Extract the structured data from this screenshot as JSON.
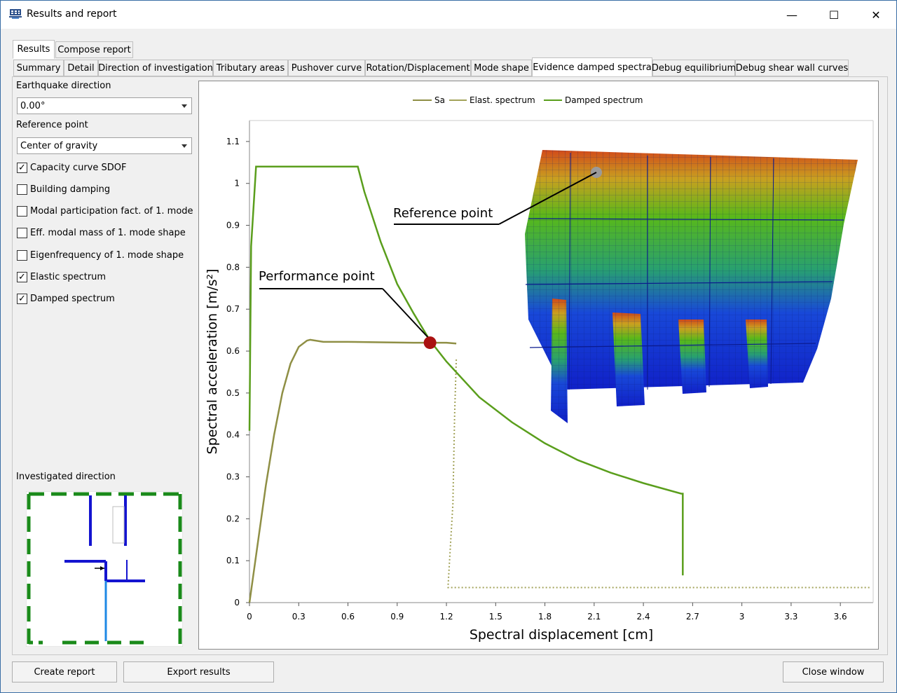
{
  "window": {
    "title": "Results and report",
    "minimize_label": "—",
    "maximize_label": "☐",
    "close_label": "✕"
  },
  "top_tabs": [
    {
      "label": "Results",
      "selected": true
    },
    {
      "label": "Compose report",
      "selected": false
    }
  ],
  "result_tabs": [
    {
      "label": "Summary"
    },
    {
      "label": "Detail"
    },
    {
      "label": "Direction of investigation"
    },
    {
      "label": "Tributary areas"
    },
    {
      "label": "Pushover curve"
    },
    {
      "label": "Rotation/Displacement"
    },
    {
      "label": "Mode shape"
    },
    {
      "label": "Evidence damped spectra",
      "selected": true
    },
    {
      "label": "Debug equilibrium"
    },
    {
      "label": "Debug shear wall curves"
    }
  ],
  "sidebar": {
    "earthquake_direction_label": "Earthquake direction",
    "earthquake_direction_value": "0.00°",
    "reference_point_label": "Reference point",
    "reference_point_value": "Center of gravity",
    "checkboxes": [
      {
        "label": "Capacity curve SDOF",
        "checked": true
      },
      {
        "label": "Building damping",
        "checked": false
      },
      {
        "label": "Modal participation fact. of 1. mode",
        "checked": false
      },
      {
        "label": "Eff. modal mass of 1. mode shape",
        "checked": false
      },
      {
        "label": "Eigenfrequency of 1. mode shape",
        "checked": false
      },
      {
        "label": "Elastic spectrum",
        "checked": true
      },
      {
        "label": "Damped spectrum",
        "checked": true
      }
    ],
    "investigated_direction_label": "Investigated direction"
  },
  "chart_data": {
    "type": "line",
    "xlabel": "Spectral displacement [cm]",
    "ylabel": "Spectral acceleration [m/s²]",
    "xlim": [
      0,
      3.8
    ],
    "ylim": [
      0,
      1.15
    ],
    "x_ticks": [
      "0",
      "0.3",
      "0.6",
      "0.9",
      "1.2",
      "1.5",
      "1.8",
      "2.1",
      "2.4",
      "2.7",
      "3",
      "3.3",
      "3.6"
    ],
    "y_ticks": [
      "0",
      "0.1",
      "0.2",
      "0.3",
      "0.4",
      "0.5",
      "0.6",
      "0.7",
      "0.8",
      "0.9",
      "1",
      "1.1"
    ],
    "legend_position": "top",
    "series": [
      {
        "name": "Sa",
        "color": "#8f8f45",
        "style": "solid",
        "x": [
          0,
          0.05,
          0.1,
          0.15,
          0.2,
          0.25,
          0.3,
          0.35,
          0.37,
          0.45,
          0.6,
          0.8,
          1.0,
          1.2,
          1.26
        ],
        "y": [
          0,
          0.14,
          0.28,
          0.4,
          0.5,
          0.57,
          0.61,
          0.625,
          0.627,
          0.622,
          0.622,
          0.621,
          0.62,
          0.62,
          0.618
        ]
      },
      {
        "name": "Elast. spectrum",
        "color": "#a3a35a",
        "style": "dotted",
        "x": [
          1.26,
          1.25,
          1.24,
          1.24,
          1.21,
          1.21,
          3.78
        ],
        "y": [
          0.58,
          0.45,
          0.25,
          0.24,
          0.04,
          0.036,
          0.036
        ]
      },
      {
        "name": "Damped spectrum",
        "color": "#5a9e1c",
        "style": "solid",
        "x": [
          0,
          0.01,
          0.04,
          0.66,
          0.7,
          0.8,
          0.9,
          1.0,
          1.1,
          1.2,
          1.4,
          1.6,
          1.8,
          2.0,
          2.2,
          2.4,
          2.63,
          2.64,
          2.64
        ],
        "y": [
          0.41,
          0.85,
          1.04,
          1.04,
          0.98,
          0.86,
          0.76,
          0.69,
          0.625,
          0.575,
          0.49,
          0.43,
          0.38,
          0.34,
          0.31,
          0.285,
          0.26,
          0.26,
          0.065
        ]
      }
    ],
    "performance_point": {
      "x": 1.1,
      "y": 0.62,
      "label": "Performance point",
      "color": "#aa1111"
    },
    "reference_point_label": "Reference point"
  },
  "buttons": {
    "create_report": "Create report",
    "export_results": "Export results",
    "close_window": "Close window"
  }
}
